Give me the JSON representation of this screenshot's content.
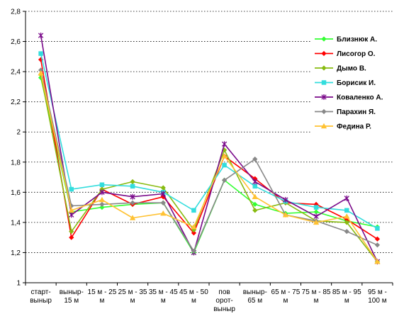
{
  "chart_data": {
    "type": "line",
    "categories": [
      [
        "старт-",
        "выныр"
      ],
      [
        "выныр-",
        "15 м"
      ],
      [
        "15 м - 25",
        "м"
      ],
      [
        "25 м - 35",
        "м"
      ],
      [
        "35 м - 45",
        "м"
      ],
      [
        "45 м - 50",
        "м"
      ],
      [
        "пов",
        "орот-",
        "выныр"
      ],
      [
        "выныр-",
        "65 м"
      ],
      [
        "65 м - 75",
        "м"
      ],
      [
        "75 м - 85",
        "м"
      ],
      [
        "85 м - 95",
        "м"
      ],
      [
        "95 м -",
        "100 м"
      ]
    ],
    "ylim": [
      1,
      2.8
    ],
    "yticks": [
      "1",
      "1,2",
      "1,4",
      "1,6",
      "1,8",
      "2",
      "2,2",
      "2,4",
      "2,6",
      "2,8"
    ],
    "grid": true,
    "legend_position": "right",
    "series": [
      {
        "name": "Близнюк А.",
        "color": "#33ff33",
        "marker": "diamond",
        "values": [
          2.36,
          1.47,
          1.5,
          1.52,
          1.53,
          1.2,
          1.68,
          1.52,
          1.46,
          1.47,
          1.41,
          1.37
        ]
      },
      {
        "name": "Лисогор О.",
        "color": "#ff0000",
        "marker": "diamond",
        "values": [
          2.48,
          1.3,
          1.62,
          1.52,
          1.57,
          1.33,
          1.84,
          1.69,
          1.53,
          1.52,
          1.42,
          1.29
        ]
      },
      {
        "name": "Дымо В.",
        "color": "#88bb11",
        "marker": "diamond",
        "values": [
          2.38,
          1.34,
          1.62,
          1.67,
          1.63,
          1.35,
          1.88,
          1.48,
          1.53,
          1.41,
          1.4,
          1.14
        ]
      },
      {
        "name": "Борисик И.",
        "color": "#33dddd",
        "marker": "square",
        "values": [
          2.52,
          1.62,
          1.65,
          1.64,
          1.6,
          1.48,
          1.78,
          1.64,
          1.54,
          1.5,
          1.48,
          1.36
        ]
      },
      {
        "name": "Коваленко А.",
        "color": "#7a0a8a",
        "marker": "star",
        "values": [
          2.64,
          1.45,
          1.6,
          1.57,
          1.59,
          1.2,
          1.92,
          1.67,
          1.55,
          1.44,
          1.56,
          1.14
        ]
      },
      {
        "name": "Парахин Я.",
        "color": "#888888",
        "marker": "diamond",
        "values": [
          2.41,
          1.51,
          1.52,
          1.53,
          1.53,
          1.21,
          1.68,
          1.82,
          1.45,
          1.41,
          1.34,
          1.25
        ]
      },
      {
        "name": "Федина Р.",
        "color": "#ffc233",
        "marker": "triangle",
        "values": [
          2.39,
          1.48,
          1.55,
          1.43,
          1.46,
          1.37,
          1.84,
          1.57,
          1.45,
          1.4,
          1.44,
          1.14
        ]
      }
    ]
  }
}
